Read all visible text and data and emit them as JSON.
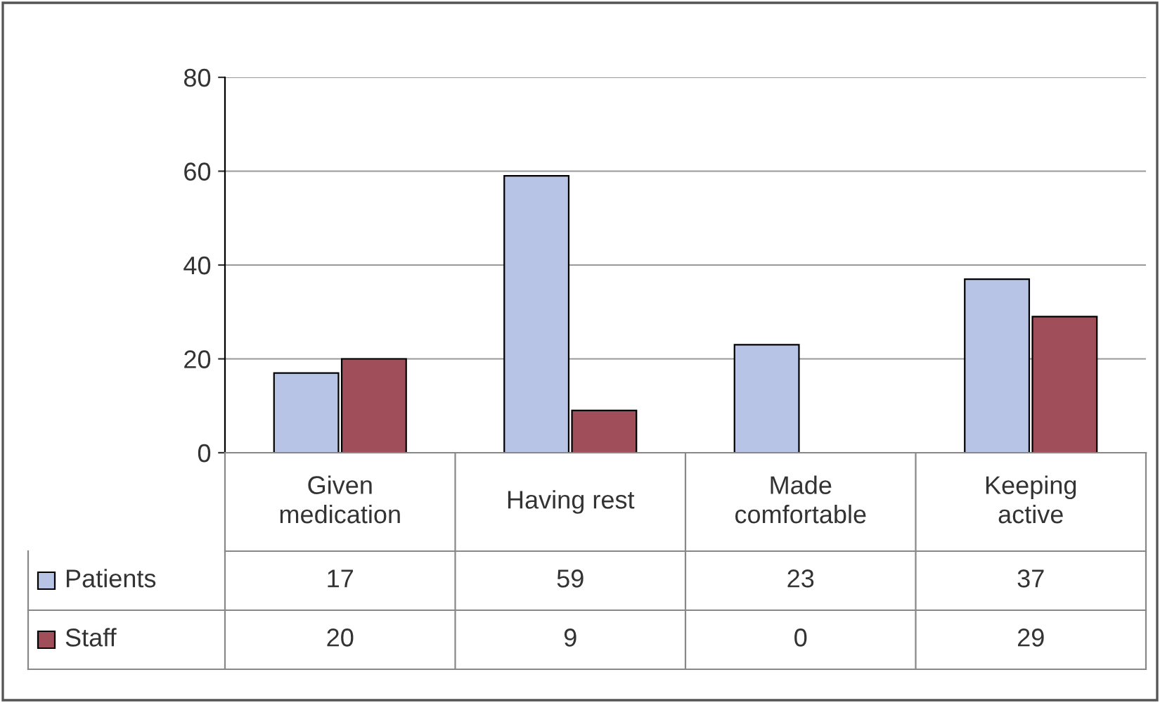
{
  "chart_data": {
    "type": "bar",
    "categories": [
      "Given medication",
      "Having rest",
      "Made comfortable",
      "Keeping active"
    ],
    "series": [
      {
        "name": "Patients",
        "color": "#b8c4e6",
        "values": [
          17,
          59,
          23,
          37
        ]
      },
      {
        "name": "Staff",
        "color": "#a04e5a",
        "values": [
          20,
          9,
          0,
          29
        ]
      }
    ],
    "ylim": [
      0,
      80
    ],
    "yticks": [
      0,
      20,
      40,
      60,
      80
    ],
    "grid": "y",
    "data_labels": true,
    "legend": "bottom left"
  }
}
